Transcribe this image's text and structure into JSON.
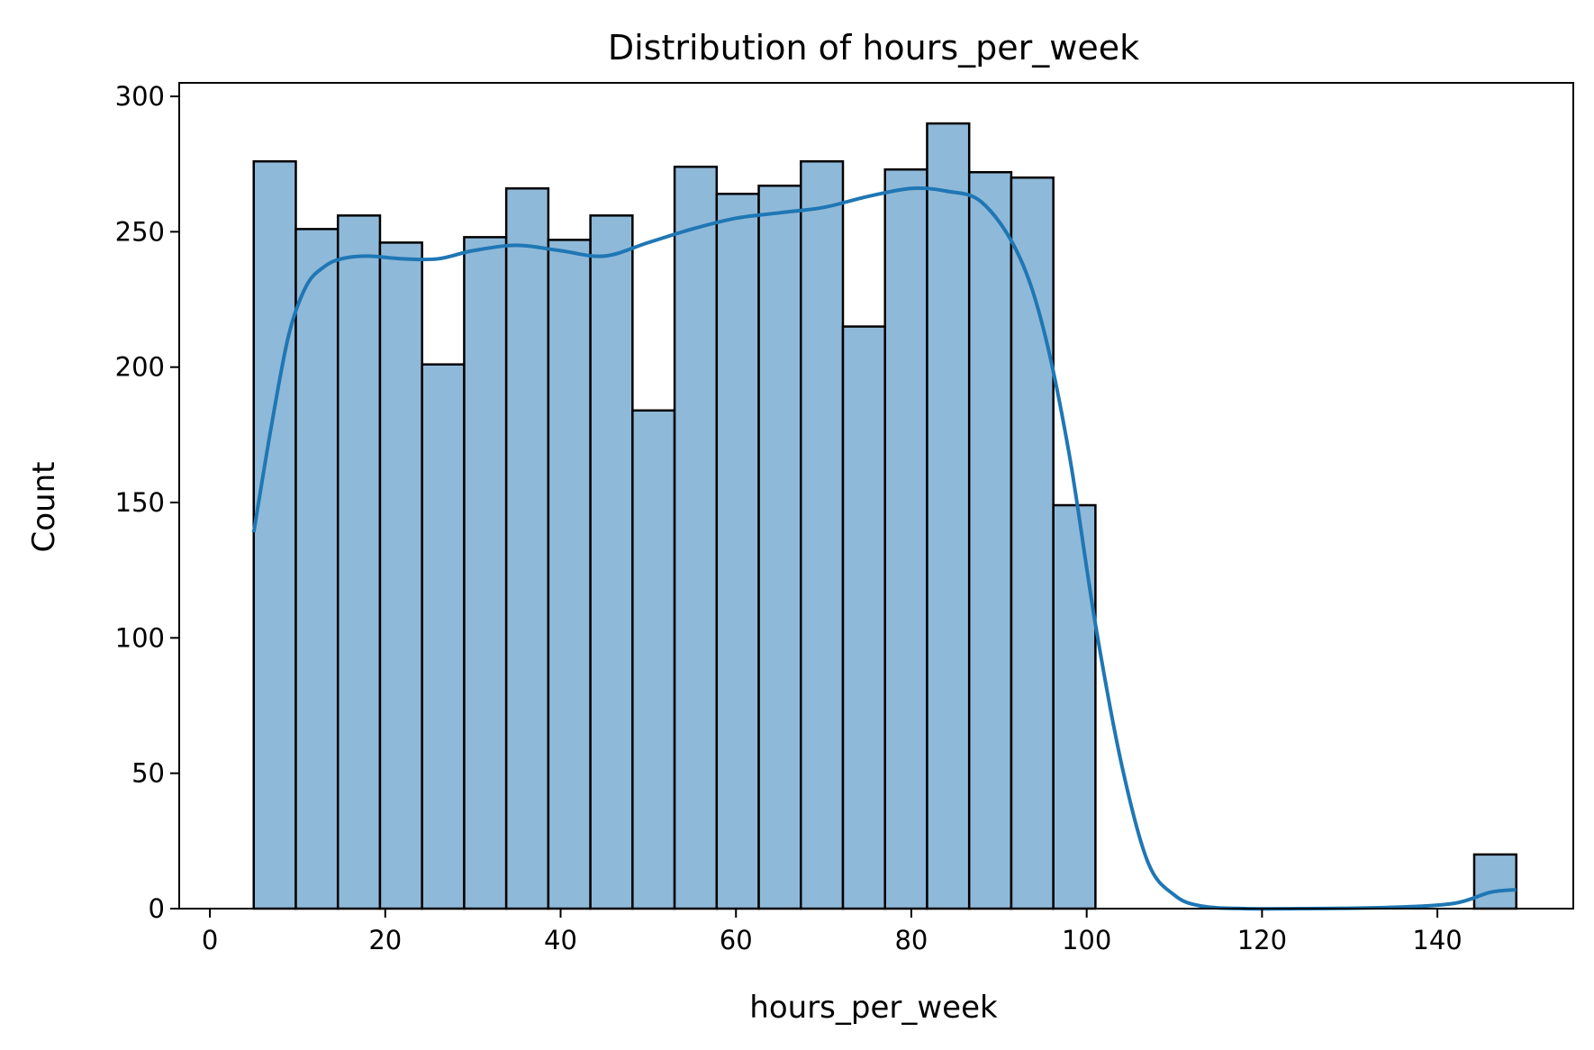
{
  "chart_data": {
    "type": "bar",
    "title": "Distribution of hours_per_week",
    "xlabel": "hours_per_week",
    "ylabel": "Count",
    "xlim": [
      -3.5,
      155.5
    ],
    "ylim": [
      0,
      305
    ],
    "xticks": [
      0,
      20,
      40,
      60,
      80,
      100,
      120,
      140
    ],
    "yticks": [
      0,
      50,
      100,
      150,
      200,
      250,
      300
    ],
    "bin_edges": [
      5,
      9.8,
      14.6,
      19.4,
      24.2,
      29,
      33.8,
      38.6,
      43.4,
      48.2,
      53,
      57.8,
      62.6,
      67.4,
      72.2,
      77,
      81.8,
      86.6,
      91.4,
      96.2,
      101,
      105.8,
      110.6,
      115.4,
      120.2,
      125,
      129.8,
      134.6,
      139.4,
      144.2,
      149
    ],
    "values": [
      276,
      251,
      256,
      246,
      201,
      248,
      266,
      247,
      256,
      184,
      274,
      264,
      267,
      276,
      215,
      273,
      290,
      272,
      270,
      149,
      0,
      0,
      0,
      0,
      0,
      0,
      0,
      0,
      0,
      20
    ],
    "kde": {
      "x": [
        5,
        7,
        9,
        11,
        13,
        15,
        18,
        22,
        26,
        30,
        35,
        40,
        45,
        50,
        55,
        60,
        65,
        70,
        75,
        80,
        84,
        88,
        92,
        95,
        98,
        101,
        104,
        107,
        110,
        113,
        118,
        125,
        135,
        142,
        146,
        149
      ],
      "y": [
        139,
        178,
        212,
        230,
        237,
        240,
        241,
        240,
        240,
        243,
        245,
        243,
        241,
        246,
        251,
        255,
        257,
        259,
        263,
        266,
        265,
        261,
        243,
        215,
        168,
        105,
        53,
        17,
        5,
        1,
        0,
        0,
        0.5,
        2,
        6,
        7
      ]
    },
    "colors": {
      "bar_fill": "#8fb9d9",
      "bar_edge": "#000000",
      "kde_line": "#1f77b4"
    },
    "grid": false,
    "legend": "none"
  }
}
